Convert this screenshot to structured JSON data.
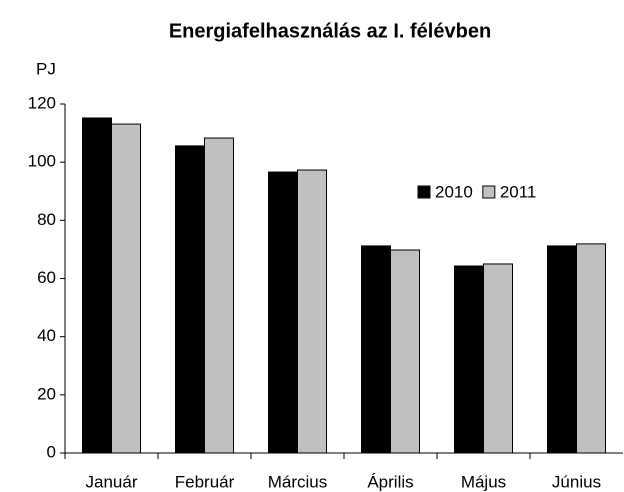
{
  "chart_data": {
    "type": "bar",
    "title": "Energiafelhasználás az I. félévben",
    "y_label": "PJ",
    "categories": [
      "Január",
      "Február",
      "Március",
      "Április",
      "Május",
      "Június"
    ],
    "series": [
      {
        "name": "2010",
        "color": "#000000",
        "values": [
          115.2,
          105.6,
          96.6,
          71.2,
          64.3,
          71.2
        ]
      },
      {
        "name": "2011",
        "color": "#c0c0c0",
        "values": [
          113.1,
          108.3,
          97.3,
          69.8,
          65.0,
          71.9
        ]
      }
    ],
    "ylim": [
      0,
      120
    ],
    "yticks": [
      0,
      20,
      40,
      60,
      80,
      100,
      120
    ],
    "grid": false
  }
}
